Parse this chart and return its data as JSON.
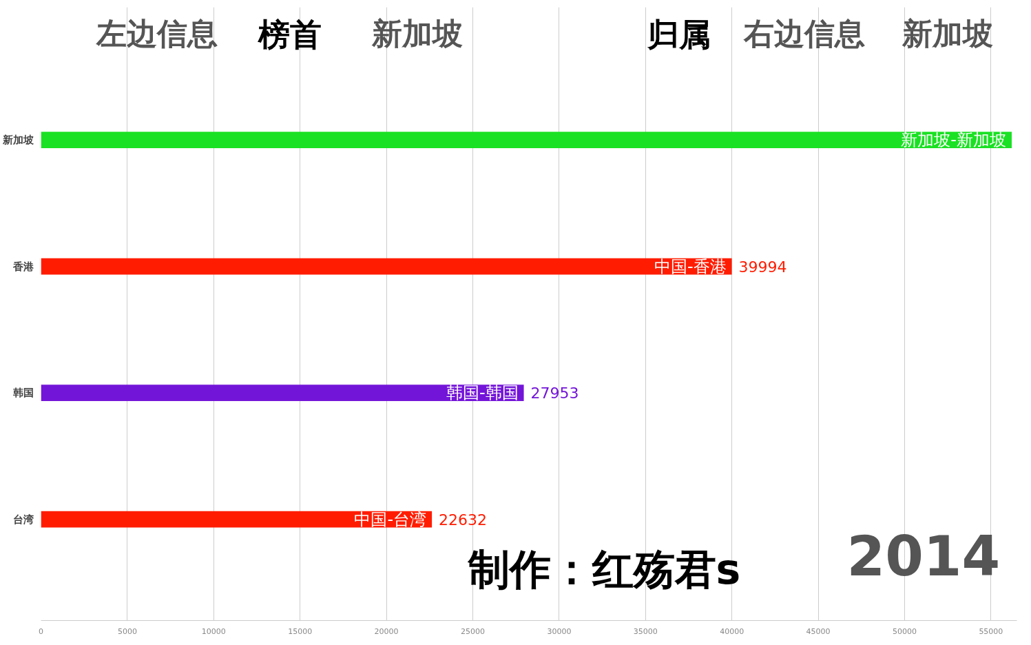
{
  "chart_data": {
    "type": "bar",
    "orientation": "horizontal",
    "categories": [
      "新加坡",
      "香港",
      "韩国",
      "台湾"
    ],
    "values": [
      56200,
      39994,
      27953,
      22632
    ],
    "colors": [
      "#1ae123",
      "#ff1c00",
      "#7315d8",
      "#ff1c00"
    ],
    "value_labels": [
      null,
      "39994",
      "27953",
      "22632"
    ],
    "xlim": [
      0,
      56500
    ],
    "xticks": [
      0,
      5000,
      10000,
      15000,
      20000,
      25000,
      30000,
      35000,
      40000,
      45000,
      50000,
      55000
    ],
    "grid": "x",
    "annotations": [
      "左边信息",
      "榜首",
      "新加坡",
      "归属",
      "右边信息",
      "新加坡",
      "制作：红殇君s",
      "2014",
      {
        "text": "新加坡-新加坡",
        "x": 56200,
        "y": "新加坡"
      },
      {
        "text": "中国-香港",
        "x": 39994,
        "y": "香港"
      },
      {
        "text": "韩国-韩国",
        "x": 27953,
        "y": "韩国"
      },
      {
        "text": "中国-台湾",
        "x": 22632,
        "y": "台湾"
      }
    ]
  }
}
